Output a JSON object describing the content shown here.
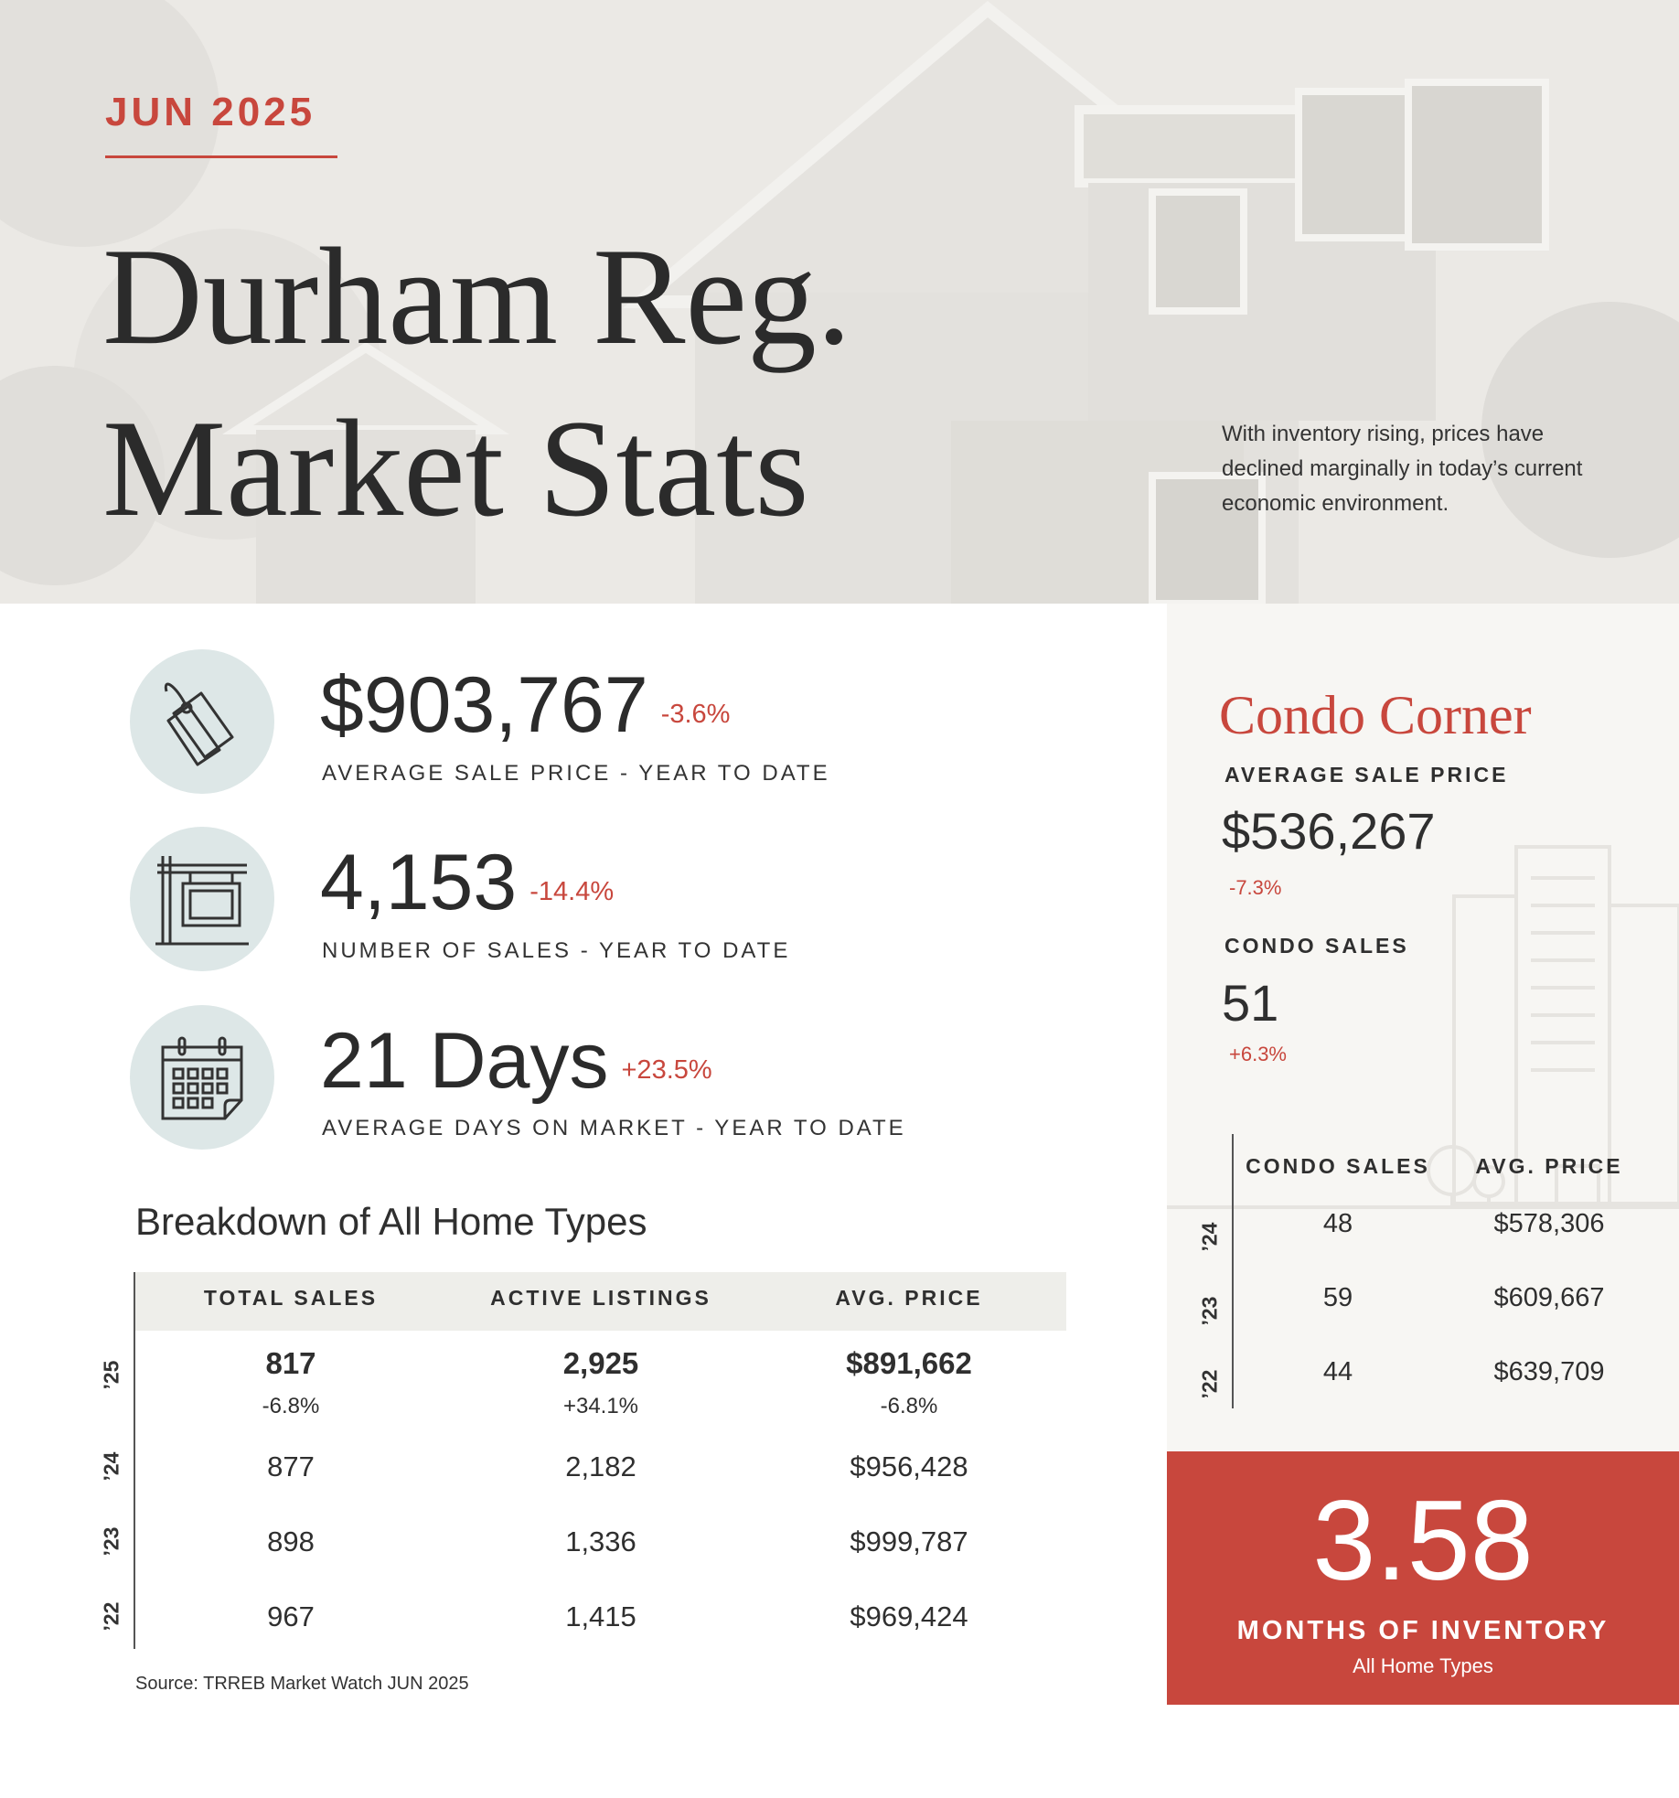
{
  "header": {
    "month": "JUN 2025",
    "title_line1": "Durham Reg.",
    "title_line2": "Market Stats",
    "blurb": "With inventory rising, prices have declined marginally in today’s current economic environment."
  },
  "key_stats": [
    {
      "icon": "price-tag-icon",
      "value": "$903,767",
      "change": "-3.6%",
      "label": "AVERAGE SALE PRICE - YEAR TO DATE"
    },
    {
      "icon": "for-sale-sign-icon",
      "value": "4,153",
      "change": "-14.4%",
      "label": "NUMBER OF SALES - YEAR TO DATE"
    },
    {
      "icon": "calendar-icon",
      "value": "21 Days",
      "change": "+23.5%",
      "label": "AVERAGE DAYS ON MARKET - YEAR TO DATE"
    }
  ],
  "breakdown": {
    "title": "Breakdown of All Home Types",
    "headers": [
      "TOTAL SALES",
      "ACTIVE LISTINGS",
      "AVG. PRICE"
    ],
    "rows": [
      {
        "year": "’25",
        "values": [
          "817",
          "2,925",
          "$891,662"
        ],
        "changes": [
          "-6.8%",
          "+34.1%",
          "-6.8%"
        ]
      },
      {
        "year": "’24",
        "values": [
          "877",
          "2,182",
          "$956,428"
        ]
      },
      {
        "year": "’23",
        "values": [
          "898",
          "1,336",
          "$999,787"
        ]
      },
      {
        "year": "’22",
        "values": [
          "967",
          "1,415",
          "$969,424"
        ]
      }
    ],
    "source": "Source: TRREB Market Watch JUN 2025"
  },
  "condo": {
    "title": "Condo Corner",
    "avg_price_label": "AVERAGE SALE PRICE",
    "avg_price_value": "$536,267",
    "avg_price_change": "-7.3%",
    "sales_label": "CONDO SALES",
    "sales_value": "51",
    "sales_change": "+6.3%",
    "table_headers": [
      "CONDO SALES",
      "AVG. PRICE"
    ],
    "table_rows": [
      {
        "year": "’24",
        "values": [
          "48",
          "$578,306"
        ]
      },
      {
        "year": "’23",
        "values": [
          "59",
          "$609,667"
        ]
      },
      {
        "year": "’22",
        "values": [
          "44",
          "$639,709"
        ]
      }
    ]
  },
  "inventory": {
    "value": "3.58",
    "label": "MONTHS OF INVENTORY",
    "sublabel": "All Home Types"
  },
  "colors": {
    "accent": "#c8473d",
    "icon_circle": "#dde7e7",
    "condo_panel": "#f7f6f3",
    "table_header": "#eeeeea"
  }
}
